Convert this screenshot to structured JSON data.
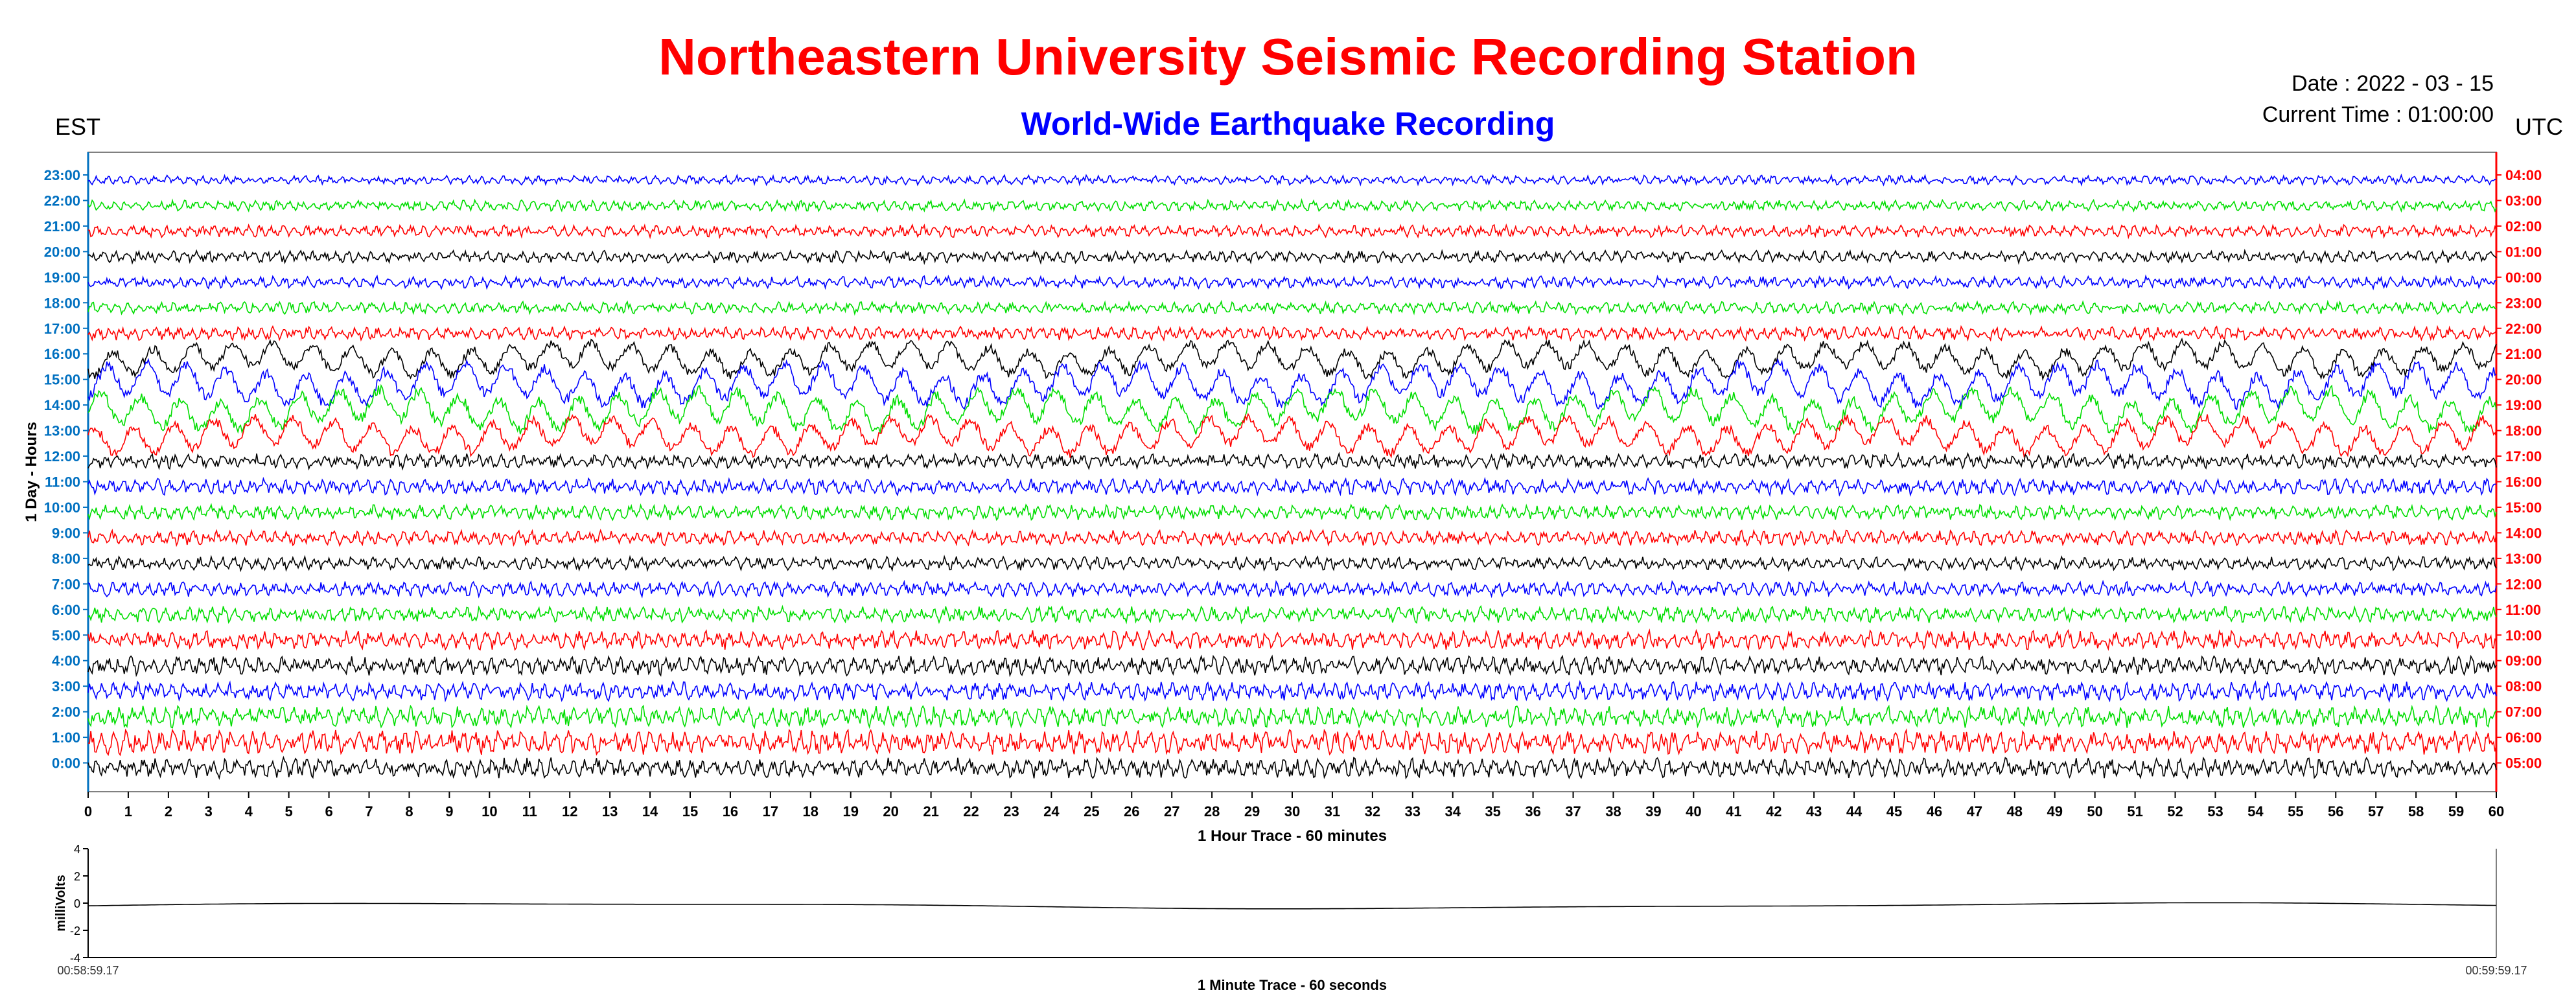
{
  "header": {
    "title": "Northeastern University Seismic Recording Station",
    "subtitle": "World-Wide Earthquake Recording",
    "date": "Date : 2022 - 03 - 15",
    "current_time": "Current Time : 01:00:00",
    "left_zone": "EST",
    "right_zone": "UTC"
  },
  "colors": {
    "title": "#ff0000",
    "subtitle": "#0000ff",
    "left_axis": "#0070c0",
    "right_axis": "#ff0000",
    "trace_cycle": [
      "#000000",
      "#ff0000",
      "#00dd00",
      "#0000ff"
    ]
  },
  "chart_data": [
    {
      "type": "line",
      "title": "",
      "xlabel": "1 Hour Trace - 60 minutes",
      "ylabel": "1 Day - Hours",
      "x_ticks": [
        0,
        1,
        2,
        3,
        4,
        5,
        6,
        7,
        8,
        9,
        10,
        11,
        12,
        13,
        14,
        15,
        16,
        17,
        18,
        19,
        20,
        21,
        22,
        23,
        24,
        25,
        26,
        27,
        28,
        29,
        30,
        31,
        32,
        33,
        34,
        35,
        36,
        37,
        38,
        39,
        40,
        41,
        42,
        43,
        44,
        45,
        46,
        47,
        48,
        49,
        50,
        51,
        52,
        53,
        54,
        55,
        56,
        57,
        58,
        59,
        60
      ],
      "xlim": [
        0,
        60
      ],
      "left_ticks": [
        "23:00",
        "22:00",
        "21:00",
        "20:00",
        "19:00",
        "18:00",
        "17:00",
        "16:00",
        "15:00",
        "14:00",
        "13:00",
        "12:00",
        "11:00",
        "10:00",
        "9:00",
        "8:00",
        "7:00",
        "6:00",
        "5:00",
        "4:00",
        "3:00",
        "2:00",
        "1:00",
        "0:00"
      ],
      "right_ticks": [
        "04:00",
        "03:00",
        "02:00",
        "01:00",
        "00:00",
        "23:00",
        "22:00",
        "21:00",
        "20:00",
        "19:00",
        "18:00",
        "17:00",
        "16:00",
        "15:00",
        "14:00",
        "13:00",
        "12:00",
        "11:00",
        "10:00",
        "09:00",
        "08:00",
        "07:00",
        "06:00",
        "05:00"
      ],
      "trace_amplitude": [
        0.35,
        0.4,
        0.45,
        0.45,
        0.45,
        0.45,
        0.5,
        1.3,
        1.6,
        1.6,
        1.4,
        0.55,
        0.6,
        0.55,
        0.55,
        0.5,
        0.55,
        0.6,
        0.7,
        0.7,
        0.7,
        0.8,
        0.9,
        0.75
      ],
      "trace_colors": [
        "#0000ff",
        "#00dd00",
        "#ff0000",
        "#000000",
        "#0000ff",
        "#00dd00",
        "#ff0000",
        "#000000",
        "#0000ff",
        "#00dd00",
        "#ff0000",
        "#000000",
        "#0000ff",
        "#00dd00",
        "#ff0000",
        "#000000",
        "#0000ff",
        "#00dd00",
        "#ff0000",
        "#000000",
        "#0000ff",
        "#00dd00",
        "#ff0000",
        "#000000"
      ]
    },
    {
      "type": "line",
      "title": "",
      "xlabel": "1 Minute Trace  - 60 seconds",
      "ylabel": "milliVolts",
      "y_ticks": [
        4,
        2,
        0,
        -2,
        -4
      ],
      "ylim": [
        -4,
        4
      ],
      "x_start_label": "00:58:59.17",
      "x_end_label": "00:59:59.17",
      "approx_level": -0.2
    }
  ]
}
